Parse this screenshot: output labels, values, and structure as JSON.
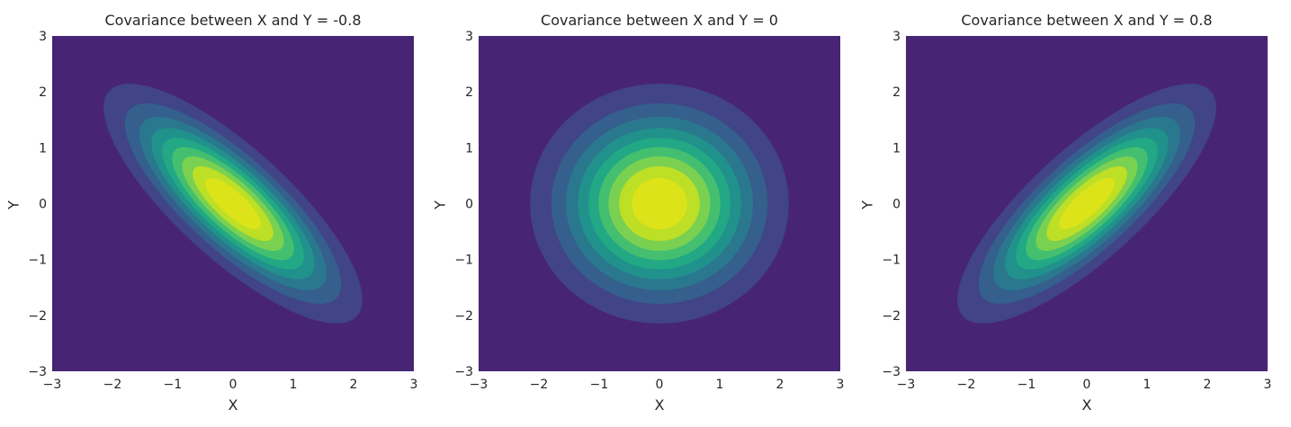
{
  "colors": {
    "viridis_levels": [
      "#482475",
      "#414487",
      "#355f8d",
      "#2a788e",
      "#21918c",
      "#22a884",
      "#44bf70",
      "#7ad151",
      "#bddf26",
      "#dce319"
    ]
  },
  "chart_data": [
    {
      "type": "contour",
      "title": "Covariance between X and Y = -0.8",
      "xlabel": "X",
      "ylabel": "Y",
      "xlim": [
        -3,
        3
      ],
      "ylim": [
        -3,
        3
      ],
      "xticks": [
        "−3",
        "−2",
        "−1",
        "0",
        "1",
        "2",
        "3"
      ],
      "yticks": [
        "3",
        "2",
        "1",
        "0",
        "−1",
        "−2",
        "−3"
      ],
      "covariance": -0.8,
      "mean": [
        0,
        0
      ],
      "variance": [
        1,
        1
      ],
      "colormap": "viridis",
      "grid": false
    },
    {
      "type": "contour",
      "title": "Covariance between X and Y = 0",
      "xlabel": "X",
      "ylabel": "Y",
      "xlim": [
        -3,
        3
      ],
      "ylim": [
        -3,
        3
      ],
      "xticks": [
        "−3",
        "−2",
        "−1",
        "0",
        "1",
        "2",
        "3"
      ],
      "yticks": [
        "3",
        "2",
        "1",
        "0",
        "−1",
        "−2",
        "−3"
      ],
      "covariance": 0,
      "mean": [
        0,
        0
      ],
      "variance": [
        1,
        1
      ],
      "colormap": "viridis",
      "grid": false
    },
    {
      "type": "contour",
      "title": "Covariance between X and Y = 0.8",
      "xlabel": "X",
      "ylabel": "Y",
      "xlim": [
        -3,
        3
      ],
      "ylim": [
        -3,
        3
      ],
      "xticks": [
        "−3",
        "−2",
        "−1",
        "0",
        "1",
        "2",
        "3"
      ],
      "yticks": [
        "3",
        "2",
        "1",
        "0",
        "−1",
        "−2",
        "−3"
      ],
      "covariance": 0.8,
      "mean": [
        0,
        0
      ],
      "variance": [
        1,
        1
      ],
      "colormap": "viridis",
      "grid": false
    }
  ]
}
